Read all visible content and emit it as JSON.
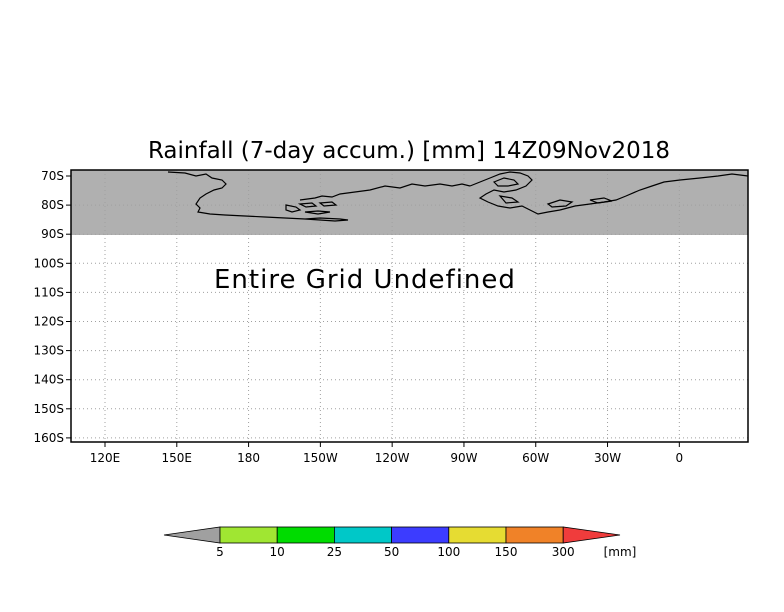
{
  "title": "Rainfall (7-day accum.) [mm] 14Z09Nov2018",
  "message": "Entire Grid Undefined",
  "y_axis": {
    "tick_labels": [
      "70S",
      "80S",
      "90S",
      "100S",
      "110S",
      "120S",
      "130S",
      "140S",
      "150S",
      "160S"
    ],
    "values": [
      -70,
      -80,
      -90,
      -100,
      -110,
      -120,
      -130,
      -140,
      -150,
      -160
    ]
  },
  "x_axis": {
    "tick_labels": [
      "120E",
      "150E",
      "180",
      "150W",
      "120W",
      "90W",
      "60W",
      "30W",
      "0"
    ],
    "values": [
      120,
      150,
      180,
      210,
      240,
      270,
      300,
      330,
      360
    ]
  },
  "colorbar": {
    "unit": "[mm]",
    "below_color": "#a0a0a0",
    "above_color": "#f03c3c",
    "bins": [
      {
        "color": "#a0e632"
      },
      {
        "color": "#00dc00"
      },
      {
        "color": "#00c8c8"
      },
      {
        "color": "#3c3cff"
      },
      {
        "color": "#e6dc32"
      },
      {
        "color": "#f08228"
      }
    ],
    "tick_labels": [
      "5",
      "10",
      "25",
      "50",
      "100",
      "150",
      "300"
    ]
  },
  "colors": {
    "land_mask": "#b0b0b0",
    "coastline": "#000000",
    "grid": "#a0a0a0"
  }
}
